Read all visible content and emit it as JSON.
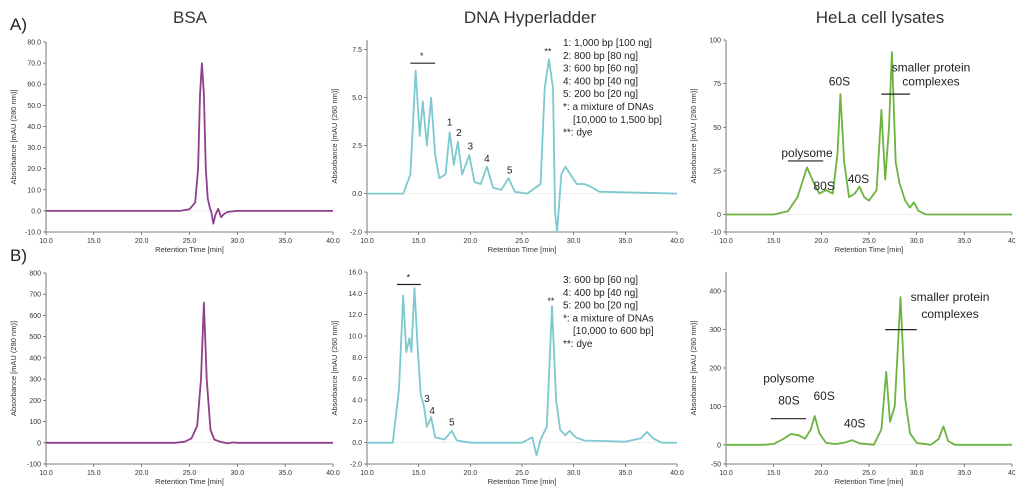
{
  "panel_labels": {
    "a": "A)",
    "b": "B)"
  },
  "column_titles": [
    "BSA",
    "DNA Hyperladder",
    "HeLa cell lysates"
  ],
  "colors": {
    "bsa": "#8e3f8e",
    "dna": "#7cc9cf",
    "hela": "#6cb33f"
  },
  "chart_data": [
    {
      "id": "A_BSA",
      "type": "line",
      "title": "",
      "xlabel": "Retention Time [min]",
      "ylabel": "Absorbance [mAU (280 nm)]",
      "xlim": [
        10,
        40
      ],
      "ylim": [
        -10,
        80
      ],
      "xticks": [
        "10.0",
        "15.0",
        "20.0",
        "25.0",
        "30.0",
        "35.0",
        "40.0"
      ],
      "yticks": [
        "-10.0",
        "0.0",
        "10.0",
        "20.0",
        "30.0",
        "40.0",
        "50.0",
        "60.0",
        "70.0",
        "80.0"
      ],
      "series": [
        {
          "color": "#8e3f8e",
          "points": [
            [
              10,
              0
            ],
            [
              24,
              0
            ],
            [
              25,
              0.8
            ],
            [
              25.6,
              4
            ],
            [
              25.9,
              20
            ],
            [
              26.1,
              55
            ],
            [
              26.3,
              70
            ],
            [
              26.5,
              55
            ],
            [
              26.7,
              20
            ],
            [
              26.9,
              6
            ],
            [
              27.1,
              2
            ],
            [
              27.3,
              -1
            ],
            [
              27.5,
              -6
            ],
            [
              27.7,
              -2
            ],
            [
              28,
              1
            ],
            [
              28.3,
              -3
            ],
            [
              28.6,
              -1.5
            ],
            [
              29,
              -0.5
            ],
            [
              30,
              0
            ],
            [
              40,
              0
            ]
          ]
        }
      ],
      "annotations": []
    },
    {
      "id": "A_DNA",
      "type": "line",
      "title": "",
      "xlabel": "Retention Time [min]",
      "ylabel": "Absorbance [mAU (260 nm)]",
      "xlim": [
        10,
        40
      ],
      "ylim": [
        -2,
        8
      ],
      "xticks": [
        "10.0",
        "15.0",
        "20.0",
        "25.0",
        "30.0",
        "35.0",
        "40.0"
      ],
      "yticks": [
        "-2.0",
        "0.0",
        "2.5",
        "5.0",
        "7.5"
      ],
      "series": [
        {
          "color": "#7cc9cf",
          "points": [
            [
              10,
              0
            ],
            [
              13.5,
              0
            ],
            [
              14.2,
              1
            ],
            [
              14.7,
              6.4
            ],
            [
              15.1,
              3
            ],
            [
              15.4,
              4.8
            ],
            [
              15.8,
              2.5
            ],
            [
              16.2,
              5
            ],
            [
              16.6,
              2
            ],
            [
              17,
              0.8
            ],
            [
              17.6,
              1
            ],
            [
              18,
              3.2
            ],
            [
              18.4,
              1.5
            ],
            [
              18.8,
              2.7
            ],
            [
              19.2,
              1
            ],
            [
              19.9,
              2
            ],
            [
              20.4,
              0.6
            ],
            [
              21,
              0.5
            ],
            [
              21.6,
              1.4
            ],
            [
              22.2,
              0.3
            ],
            [
              23,
              0.2
            ],
            [
              23.7,
              0.8
            ],
            [
              24.3,
              0.1
            ],
            [
              25.5,
              0
            ],
            [
              26.8,
              0.5
            ],
            [
              27.2,
              5.5
            ],
            [
              27.6,
              7
            ],
            [
              28,
              5.5
            ],
            [
              28.2,
              -1
            ],
            [
              28.4,
              -2
            ],
            [
              28.8,
              1
            ],
            [
              29.2,
              1.4
            ],
            [
              29.8,
              0.9
            ],
            [
              30.3,
              0.5
            ],
            [
              31,
              0.5
            ],
            [
              31.5,
              0.4
            ],
            [
              32.5,
              0.1
            ],
            [
              40,
              0
            ]
          ]
        }
      ],
      "annotations": [
        {
          "text": "*",
          "x": 15.3,
          "y": 7.0,
          "bar": [
            14.2,
            16.6
          ]
        },
        {
          "text": "1",
          "x": 18.0,
          "y": 3.55
        },
        {
          "text": "2",
          "x": 18.9,
          "y": 3.0
        },
        {
          "text": "3",
          "x": 20.0,
          "y": 2.3
        },
        {
          "text": "4",
          "x": 21.6,
          "y": 1.65
        },
        {
          "text": "5",
          "x": 23.8,
          "y": 1.05
        },
        {
          "text": "**",
          "x": 27.5,
          "y": 7.25
        }
      ],
      "legend_lines": [
        "1: 1,000 bp [100 ng]",
        "2: 800 bp [80 ng]",
        "3: 600 bp [60 ng]",
        "4: 400 bp [40 ng]",
        "5: 200 bo [20 ng]",
        "*:  a mixture of DNAs",
        "[10,000 to 1,500 bp]",
        "**: dye"
      ]
    },
    {
      "id": "A_HeLa",
      "type": "line",
      "title": "",
      "xlabel": "Retention Time [min]",
      "ylabel": "Absorbance [mAU (260 nm)]",
      "xlim": [
        10,
        40
      ],
      "ylim": [
        -10,
        100
      ],
      "xticks": [
        "10.0",
        "15.0",
        "20.0",
        "25.0",
        "30.0",
        "35.0",
        "40"
      ],
      "yticks": [
        "-10",
        "0",
        "25",
        "50",
        "75",
        "100"
      ],
      "series": [
        {
          "color": "#6cb33f",
          "points": [
            [
              10,
              0
            ],
            [
              15,
              0
            ],
            [
              16.5,
              2
            ],
            [
              17.5,
              10
            ],
            [
              18.5,
              27
            ],
            [
              19.3,
              17
            ],
            [
              19.8,
              12
            ],
            [
              20.5,
              14
            ],
            [
              21.2,
              12
            ],
            [
              21.7,
              35
            ],
            [
              22,
              69
            ],
            [
              22.4,
              30
            ],
            [
              22.9,
              10
            ],
            [
              23.5,
              12
            ],
            [
              24,
              16
            ],
            [
              24.5,
              10
            ],
            [
              25,
              8
            ],
            [
              25.8,
              14
            ],
            [
              26.3,
              60
            ],
            [
              26.7,
              20
            ],
            [
              27.1,
              50
            ],
            [
              27.4,
              93
            ],
            [
              27.8,
              30
            ],
            [
              28.2,
              18
            ],
            [
              28.8,
              8
            ],
            [
              29.3,
              4
            ],
            [
              29.7,
              7
            ],
            [
              30.2,
              2
            ],
            [
              31,
              0
            ],
            [
              40,
              0
            ]
          ]
        }
      ],
      "annotations": [
        {
          "text": "polysome",
          "x": 18.5,
          "y": 33,
          "bar": [
            16.5,
            20.2
          ]
        },
        {
          "text": "80S",
          "x": 20.3,
          "y": 14
        },
        {
          "text": "60S",
          "x": 21.9,
          "y": 74
        },
        {
          "text": "40S",
          "x": 23.9,
          "y": 18
        },
        {
          "text": "smaller protein",
          "x": 31.5,
          "y": 82,
          "bar": [
            26.3,
            29.3
          ],
          "bar_y": 69
        },
        {
          "text": "complexes",
          "x": 31.5,
          "y": 74
        }
      ]
    },
    {
      "id": "B_BSA",
      "type": "line",
      "title": "",
      "xlabel": "Retention Time [min]",
      "ylabel": "Absorbance [mAU (280 nm)]",
      "xlim": [
        10,
        40
      ],
      "ylim": [
        -100,
        800
      ],
      "xticks": [
        "10.0",
        "15.0",
        "20.0",
        "25.0",
        "30.0",
        "35.0",
        "40.0"
      ],
      "yticks": [
        "-100",
        "0",
        "100",
        "200",
        "300",
        "400",
        "500",
        "600",
        "700",
        "800"
      ],
      "series": [
        {
          "color": "#8e3f8e",
          "points": [
            [
              10,
              0
            ],
            [
              23.5,
              0
            ],
            [
              24.5,
              5
            ],
            [
              25.2,
              20
            ],
            [
              25.8,
              80
            ],
            [
              26.2,
              300
            ],
            [
              26.5,
              660
            ],
            [
              26.8,
              300
            ],
            [
              27.2,
              60
            ],
            [
              27.6,
              15
            ],
            [
              28.2,
              5
            ],
            [
              29,
              -3
            ],
            [
              29.5,
              2
            ],
            [
              30,
              0
            ],
            [
              40,
              0
            ]
          ]
        }
      ],
      "annotations": []
    },
    {
      "id": "B_DNA",
      "type": "line",
      "title": "",
      "xlabel": "Retention Time [min]",
      "ylabel": "Absorbance [mAU (260 nm)]",
      "xlim": [
        10,
        40
      ],
      "ylim": [
        -2,
        16
      ],
      "xticks": [
        "10.0",
        "15.0",
        "20.0",
        "25.0",
        "30.0",
        "35.0",
        "40.0"
      ],
      "yticks": [
        "-2.0",
        "0.0",
        "2.0",
        "4.0",
        "6.0",
        "8.0",
        "10.0",
        "12.0",
        "14.0",
        "16.0"
      ],
      "series": [
        {
          "color": "#7cc9cf",
          "points": [
            [
              10,
              0
            ],
            [
              12.5,
              0
            ],
            [
              13.1,
              5
            ],
            [
              13.5,
              13.8
            ],
            [
              13.8,
              8.5
            ],
            [
              14.1,
              9.8
            ],
            [
              14.3,
              8.5
            ],
            [
              14.6,
              14.5
            ],
            [
              14.9,
              9
            ],
            [
              15.2,
              4.5
            ],
            [
              15.5,
              3.5
            ],
            [
              15.8,
              1.5
            ],
            [
              16.2,
              2.4
            ],
            [
              16.6,
              0.5
            ],
            [
              17.5,
              0.3
            ],
            [
              18.2,
              1.1
            ],
            [
              18.7,
              0.2
            ],
            [
              20,
              0
            ],
            [
              25,
              0
            ],
            [
              26,
              0.5
            ],
            [
              26.4,
              -1.2
            ],
            [
              26.8,
              0.3
            ],
            [
              27.4,
              1.5
            ],
            [
              27.9,
              12.8
            ],
            [
              28.3,
              4
            ],
            [
              28.7,
              1.2
            ],
            [
              29.2,
              0.7
            ],
            [
              29.6,
              1.1
            ],
            [
              30.2,
              0.5
            ],
            [
              31,
              0.2
            ],
            [
              35,
              0.1
            ],
            [
              36.5,
              0.4
            ],
            [
              37.1,
              1
            ],
            [
              37.7,
              0.4
            ],
            [
              38.5,
              0
            ],
            [
              40,
              0
            ]
          ]
        }
      ],
      "annotations": [
        {
          "text": "*",
          "x": 14.0,
          "y": 15.2,
          "bar": [
            12.9,
            15.2
          ]
        },
        {
          "text": "3",
          "x": 15.8,
          "y": 3.8
        },
        {
          "text": "4",
          "x": 16.3,
          "y": 2.7
        },
        {
          "text": "5",
          "x": 18.2,
          "y": 1.6
        },
        {
          "text": "**",
          "x": 27.8,
          "y": 13.0
        }
      ],
      "legend_lines": [
        "3: 600 bp [60 ng]",
        "4: 400 bp [40 ng]",
        "5: 200 bo [20 ng]",
        "*:  a mixture of DNAs",
        "[10,000 to 600 bp]",
        "**: dye"
      ]
    },
    {
      "id": "B_HeLa",
      "type": "line",
      "title": "",
      "xlabel": "Retention Time [min]",
      "ylabel": "Absorbance [mAU (260 nm)]",
      "xlim": [
        10,
        40
      ],
      "ylim": [
        -50,
        450
      ],
      "xticks": [
        "10.0",
        "15.0",
        "20.0",
        "25.0",
        "30.0",
        "35.0",
        "40"
      ],
      "yticks": [
        "-50",
        "0",
        "100",
        "200",
        "300",
        "400"
      ],
      "series": [
        {
          "color": "#6cb33f",
          "points": [
            [
              10,
              0
            ],
            [
              14,
              0
            ],
            [
              15,
              2
            ],
            [
              16,
              15
            ],
            [
              16.8,
              28
            ],
            [
              17.6,
              25
            ],
            [
              18.3,
              16
            ],
            [
              18.9,
              40
            ],
            [
              19.3,
              75
            ],
            [
              19.8,
              30
            ],
            [
              20.5,
              5
            ],
            [
              21.5,
              2
            ],
            [
              22.5,
              6
            ],
            [
              23.2,
              12
            ],
            [
              24,
              4
            ],
            [
              25.5,
              0
            ],
            [
              26.3,
              40
            ],
            [
              26.8,
              190
            ],
            [
              27.2,
              60
            ],
            [
              27.7,
              100
            ],
            [
              28.3,
              385
            ],
            [
              28.8,
              120
            ],
            [
              29.3,
              30
            ],
            [
              30,
              5
            ],
            [
              31.5,
              0
            ],
            [
              32.3,
              15
            ],
            [
              32.8,
              48
            ],
            [
              33.3,
              10
            ],
            [
              34,
              0
            ],
            [
              40,
              0
            ]
          ]
        }
      ],
      "annotations": [
        {
          "text": "polysome",
          "x": 16.6,
          "y": 162,
          "bar": [
            14.7,
            18.4
          ],
          "bar_y": 68
        },
        {
          "text": "80S",
          "x": 16.6,
          "y": 105
        },
        {
          "text": "60S",
          "x": 20.3,
          "y": 117
        },
        {
          "text": "40S",
          "x": 23.5,
          "y": 45
        },
        {
          "text": "smaller protein",
          "x": 33.5,
          "y": 375,
          "bar": [
            26.7,
            30.0
          ],
          "bar_y": 300
        },
        {
          "text": "complexes",
          "x": 33.5,
          "y": 330
        }
      ]
    }
  ]
}
